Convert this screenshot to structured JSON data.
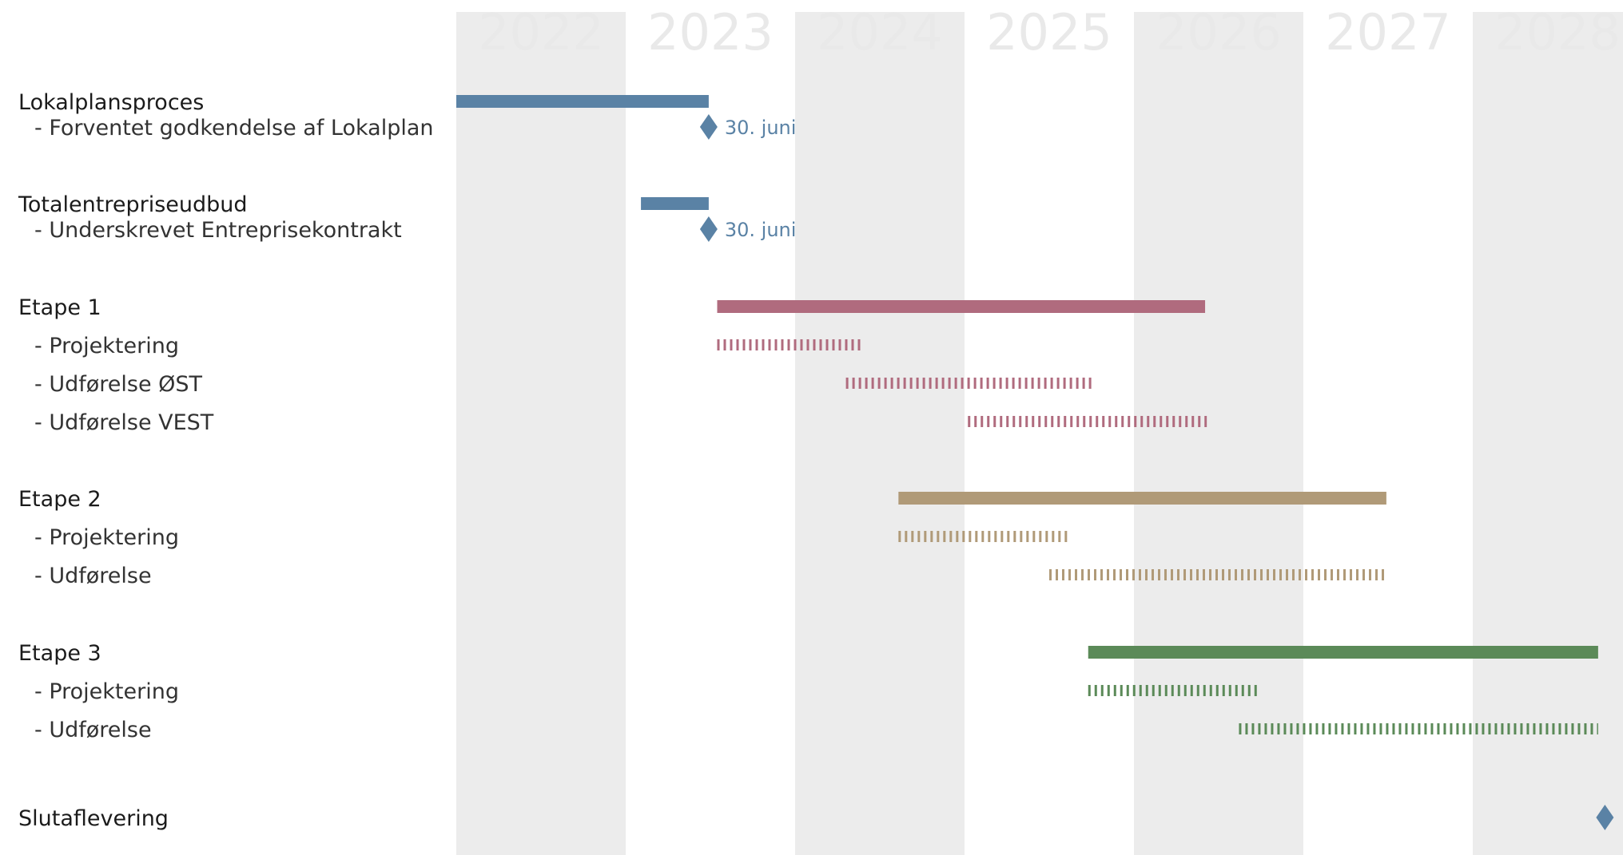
{
  "chart_data": {
    "type": "gantt",
    "years": [
      "2022",
      "2023",
      "2024",
      "2025",
      "2026",
      "2027",
      "2028"
    ],
    "x_range": [
      2022.0,
      2028.9
    ],
    "colors": {
      "blue": "#5a82a5",
      "red": "#b06b7e",
      "tan": "#b09a78",
      "green": "#5b8a58",
      "shade": "#ececec"
    },
    "rows": [
      {
        "label": "Lokalplansproces",
        "level": 0,
        "items": [
          {
            "kind": "bar",
            "start": 2022.0,
            "end": 2023.49,
            "color": "blue"
          }
        ]
      },
      {
        "label": "- Forventet godkendelse af Lokalplan",
        "level": 1,
        "items": [
          {
            "kind": "milestone",
            "at": 2023.49,
            "color": "blue",
            "label": "30. juni"
          }
        ]
      },
      {
        "label": "Totalentrepriseudbud",
        "level": 0,
        "items": [
          {
            "kind": "bar",
            "start": 2023.09,
            "end": 2023.49,
            "color": "blue"
          }
        ]
      },
      {
        "label": "- Underskrevet Entreprisekontrakt",
        "level": 1,
        "items": [
          {
            "kind": "milestone",
            "at": 2023.49,
            "color": "blue",
            "label": "30. juni"
          }
        ]
      },
      {
        "label": "Etape 1",
        "level": 0,
        "items": [
          {
            "kind": "bar",
            "start": 2023.54,
            "end": 2026.42,
            "color": "red"
          }
        ]
      },
      {
        "label": "- Projektering",
        "level": 1,
        "items": [
          {
            "kind": "dashed",
            "start": 2023.54,
            "end": 2024.4,
            "color": "red"
          }
        ]
      },
      {
        "label": "- Udførelse ØST",
        "level": 1,
        "items": [
          {
            "kind": "dashed",
            "start": 2024.3,
            "end": 2025.75,
            "color": "red"
          }
        ]
      },
      {
        "label": "- Udførelse VEST",
        "level": 1,
        "items": [
          {
            "kind": "dashed",
            "start": 2025.02,
            "end": 2026.43,
            "color": "red"
          }
        ]
      },
      {
        "label": "Etape 2",
        "level": 0,
        "items": [
          {
            "kind": "bar",
            "start": 2024.61,
            "end": 2027.49,
            "color": "tan"
          }
        ]
      },
      {
        "label": "- Projektering",
        "level": 1,
        "items": [
          {
            "kind": "dashed",
            "start": 2024.61,
            "end": 2025.62,
            "color": "tan"
          }
        ]
      },
      {
        "label": "- Udførelse",
        "level": 1,
        "items": [
          {
            "kind": "dashed",
            "start": 2025.5,
            "end": 2027.5,
            "color": "tan"
          }
        ]
      },
      {
        "label": "Etape 3",
        "level": 0,
        "items": [
          {
            "kind": "bar",
            "start": 2025.73,
            "end": 2028.74,
            "color": "green"
          }
        ]
      },
      {
        "label": "- Projektering",
        "level": 1,
        "items": [
          {
            "kind": "dashed",
            "start": 2025.73,
            "end": 2026.74,
            "color": "green"
          }
        ]
      },
      {
        "label": "- Udførelse",
        "level": 1,
        "items": [
          {
            "kind": "dashed",
            "start": 2026.62,
            "end": 2028.74,
            "color": "green"
          }
        ]
      },
      {
        "label": "Slutaflevering",
        "level": 0,
        "items": [
          {
            "kind": "milestone",
            "at": 2028.78,
            "color": "blue"
          }
        ]
      }
    ]
  }
}
